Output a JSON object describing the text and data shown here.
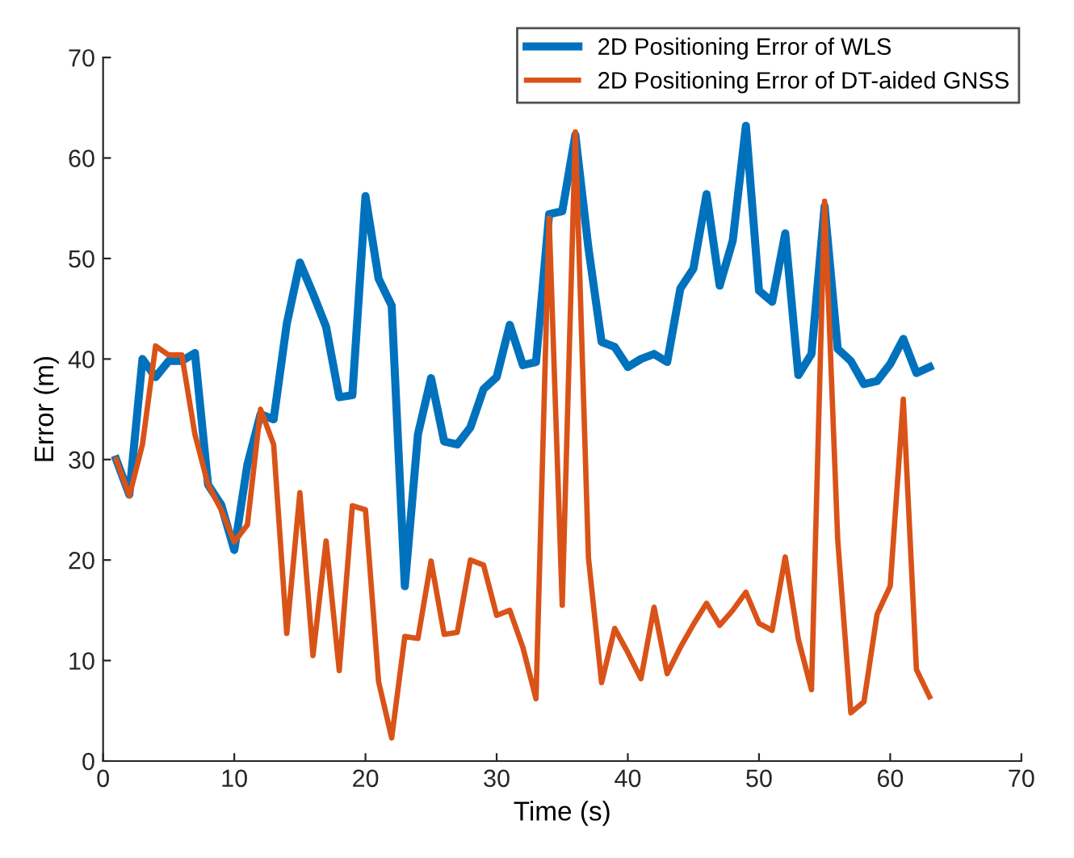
{
  "chart_data": {
    "type": "line",
    "xlabel": "Time (s)",
    "ylabel": "Error (m)",
    "x": [
      1,
      2,
      3,
      4,
      5,
      6,
      7,
      8,
      9,
      10,
      11,
      12,
      13,
      14,
      15,
      16,
      17,
      18,
      19,
      20,
      21,
      22,
      23,
      24,
      25,
      26,
      27,
      28,
      29,
      30,
      31,
      32,
      33,
      34,
      35,
      36,
      37,
      38,
      39,
      40,
      41,
      42,
      43,
      44,
      45,
      46,
      47,
      48,
      49,
      50,
      51,
      52,
      53,
      54,
      55,
      56,
      57,
      58,
      59,
      60,
      61,
      62,
      63
    ],
    "series": [
      {
        "name": "2D Positioning Error of WLS",
        "color": "#0072bd",
        "values": [
          30,
          26.5,
          40,
          38.2,
          39.8,
          39.8,
          40.6,
          27.5,
          25.5,
          21,
          29.5,
          34.5,
          34,
          43.5,
          49.6,
          46.5,
          43.2,
          36.2,
          36.4,
          56.2,
          48,
          45.3,
          17.4,
          32.5,
          38.1,
          31.8,
          31.5,
          33.2,
          37,
          38.2,
          43.4,
          39.4,
          39.7,
          54.4,
          54.7,
          62.3,
          51,
          41.7,
          41.2,
          39.2,
          40,
          40.5,
          39.7,
          47,
          49,
          56.4,
          47.3,
          51.8,
          63.2,
          46.8,
          45.7,
          52.5,
          38.4,
          40.5,
          55.2,
          41,
          39.8,
          37.5,
          37.8,
          39.5,
          42,
          38.6,
          39.2
        ]
      },
      {
        "name": "2D Positioning Error of DT-aided GNSS",
        "color": "#d95319",
        "values": [
          30,
          26.4,
          31.5,
          41.3,
          40.4,
          40.4,
          32.5,
          27.5,
          25,
          21.8,
          23.5,
          35,
          31.5,
          12.7,
          26.7,
          10.5,
          21.9,
          9,
          25.4,
          25,
          7.9,
          2.3,
          12.4,
          12.2,
          19.9,
          12.6,
          12.8,
          20,
          19.5,
          14.5,
          15,
          11.3,
          6.2,
          54,
          15.5,
          62.6,
          20.2,
          7.8,
          13.2,
          10.8,
          8.2,
          15.3,
          8.7,
          11.3,
          13.6,
          15.7,
          13.5,
          15,
          16.8,
          13.7,
          13,
          20.3,
          12.1,
          7.1,
          55.7,
          22,
          4.8,
          5.9,
          14.6,
          17.4,
          36,
          9.1,
          6.4
        ]
      }
    ],
    "xlim": [
      0,
      70
    ],
    "xticks": [
      0,
      10,
      20,
      30,
      40,
      50,
      60,
      70
    ],
    "ylim": [
      0,
      70
    ],
    "yticks": [
      0,
      10,
      20,
      30,
      40,
      50,
      60,
      70
    ],
    "grid": false,
    "legend": "top right",
    "line_style": "solid",
    "marker": "none"
  }
}
